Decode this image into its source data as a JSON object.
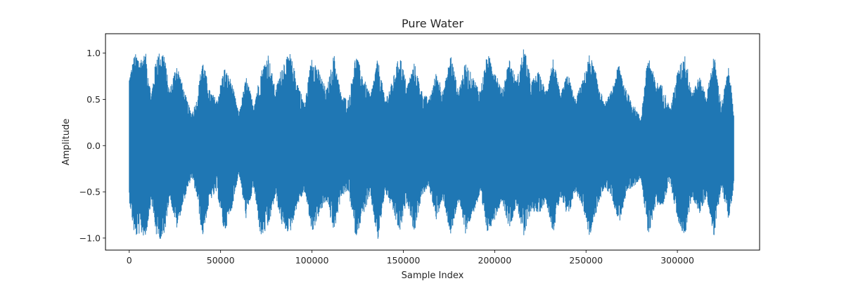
{
  "chart_data": {
    "type": "line",
    "title": "Pure Water",
    "xlabel": "Sample Index",
    "ylabel": "Amplitude",
    "xlim": [
      -13000,
      345000
    ],
    "ylim": [
      -1.13,
      1.21
    ],
    "x_ticks": [
      0,
      50000,
      100000,
      150000,
      200000,
      250000,
      300000
    ],
    "x_tick_labels": [
      "0",
      "50000",
      "100000",
      "150000",
      "200000",
      "250000",
      "300000"
    ],
    "y_ticks": [
      -1.0,
      -0.5,
      0.0,
      0.5,
      1.0
    ],
    "y_tick_labels": [
      "−1.0",
      "−0.5",
      "0.0",
      "0.5",
      "1.0"
    ],
    "grid": false,
    "series": [
      {
        "color": "#1f77b4",
        "sample_count": 331000,
        "envelope_x": [
          0,
          3000,
          6000,
          9000,
          12000,
          15000,
          19000,
          22000,
          26000,
          30000,
          34000,
          37000,
          40000,
          44000,
          48000,
          52000,
          56000,
          60000,
          64000,
          68000,
          72000,
          76000,
          80000,
          84000,
          88000,
          92000,
          96000,
          100000,
          104000,
          108000,
          112000,
          116000,
          120000,
          124000,
          128000,
          132000,
          136000,
          140000,
          144000,
          148000,
          152000,
          156000,
          160000,
          164000,
          168000,
          172000,
          176000,
          180000,
          184000,
          188000,
          192000,
          196000,
          200000,
          204000,
          208000,
          212000,
          216000,
          220000,
          224000,
          228000,
          232000,
          236000,
          240000,
          244000,
          248000,
          252000,
          256000,
          260000,
          264000,
          268000,
          272000,
          276000,
          280000,
          284000,
          288000,
          292000,
          296000,
          300000,
          304000,
          308000,
          312000,
          316000,
          320000,
          324000,
          328000,
          331000
        ],
        "envelope_max": [
          0.75,
          1.0,
          0.95,
          1.0,
          0.55,
          1.0,
          1.02,
          0.6,
          0.9,
          0.6,
          0.35,
          0.5,
          0.95,
          0.6,
          0.5,
          0.85,
          0.7,
          0.35,
          0.75,
          0.45,
          0.8,
          1.0,
          0.6,
          0.9,
          1.0,
          0.7,
          0.45,
          1.0,
          0.8,
          0.6,
          1.0,
          0.55,
          0.5,
          1.0,
          0.75,
          0.55,
          0.95,
          0.5,
          0.7,
          1.0,
          0.65,
          0.9,
          0.6,
          0.5,
          0.8,
          0.6,
          1.0,
          0.6,
          0.9,
          0.75,
          0.6,
          1.0,
          0.85,
          0.6,
          0.95,
          0.7,
          1.08,
          0.7,
          0.8,
          0.6,
          0.95,
          0.55,
          0.8,
          0.5,
          0.7,
          1.0,
          0.75,
          0.45,
          0.6,
          0.9,
          0.6,
          0.45,
          0.3,
          1.0,
          0.7,
          0.65,
          0.4,
          0.8,
          1.0,
          0.6,
          0.75,
          0.55,
          1.0,
          0.45,
          0.85,
          0.4
        ],
        "envelope_min": [
          -0.6,
          -1.0,
          -0.95,
          -1.0,
          -0.6,
          -1.0,
          -1.02,
          -0.55,
          -0.9,
          -0.6,
          -0.35,
          -0.55,
          -1.0,
          -0.6,
          -0.5,
          -0.95,
          -0.7,
          -0.3,
          -0.8,
          -0.45,
          -1.0,
          -0.9,
          -0.55,
          -0.9,
          -0.95,
          -0.65,
          -0.5,
          -0.95,
          -0.75,
          -0.6,
          -0.95,
          -0.55,
          -0.5,
          -1.0,
          -0.75,
          -0.55,
          -1.05,
          -0.5,
          -0.7,
          -0.95,
          -0.6,
          -0.95,
          -0.55,
          -0.45,
          -0.8,
          -0.6,
          -1.0,
          -0.6,
          -0.95,
          -0.75,
          -0.55,
          -0.95,
          -0.8,
          -0.6,
          -0.9,
          -0.65,
          -1.0,
          -0.7,
          -0.75,
          -0.6,
          -0.95,
          -0.55,
          -0.8,
          -0.5,
          -0.65,
          -1.0,
          -0.7,
          -0.45,
          -0.55,
          -0.85,
          -0.55,
          -0.45,
          -0.35,
          -1.0,
          -0.65,
          -0.65,
          -0.4,
          -0.8,
          -1.0,
          -0.55,
          -0.75,
          -0.55,
          -1.0,
          -0.45,
          -0.8,
          -0.45
        ]
      }
    ]
  }
}
